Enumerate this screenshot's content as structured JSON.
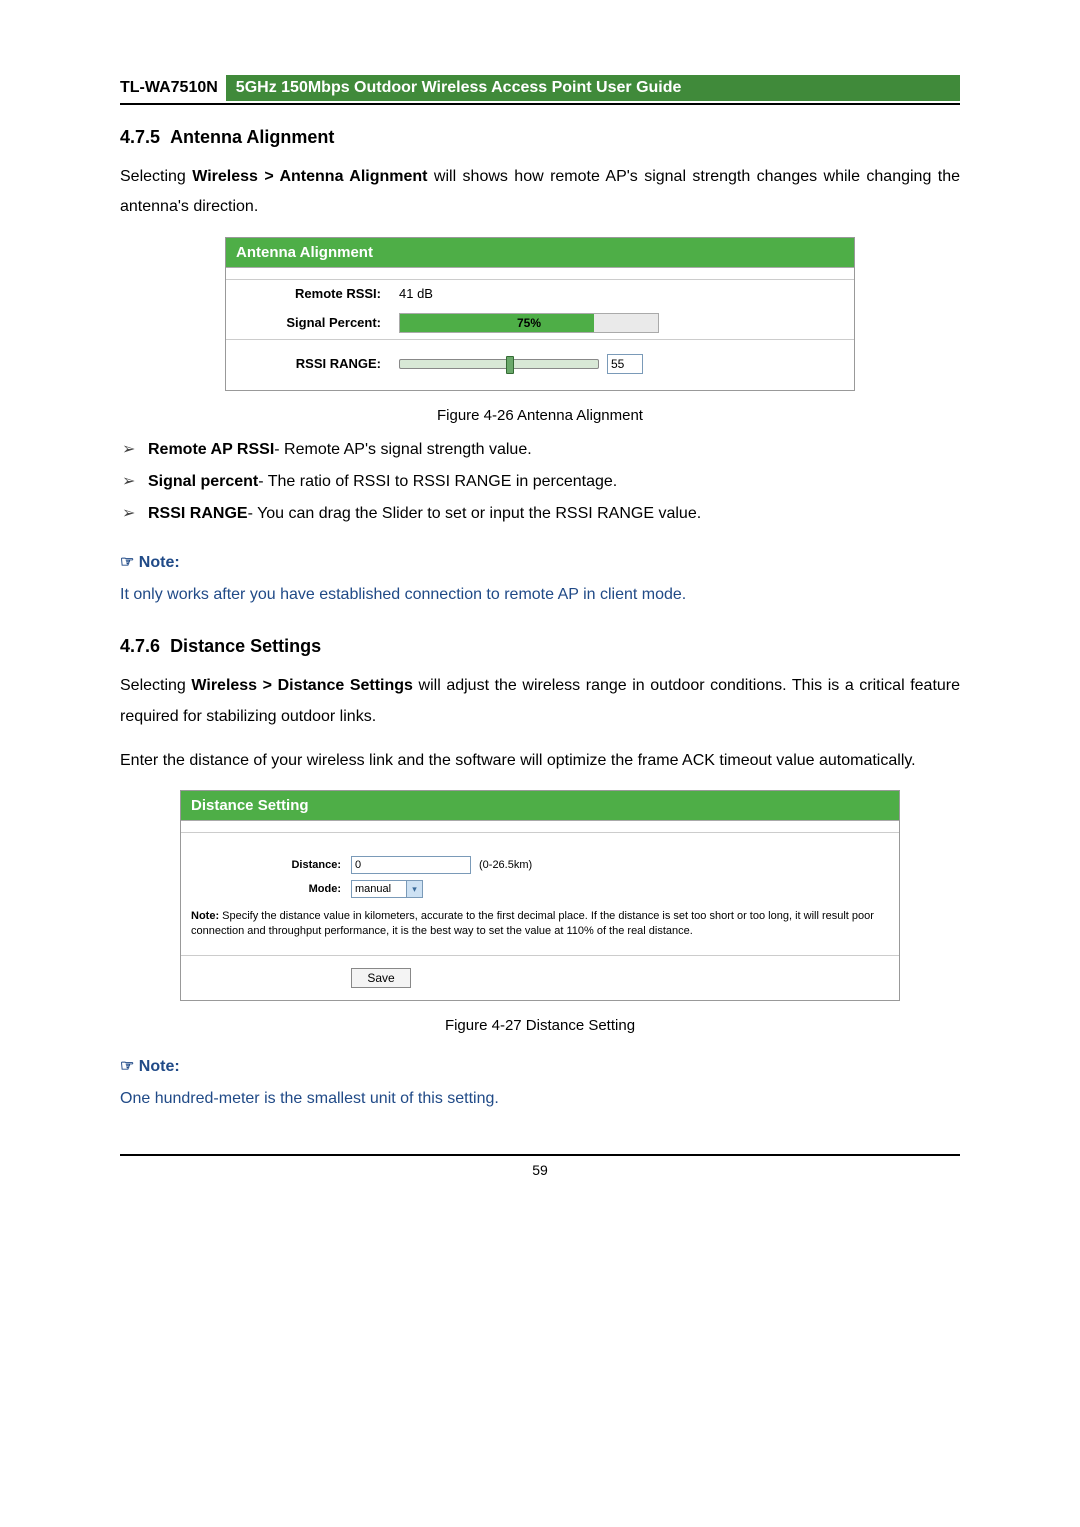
{
  "header": {
    "model": "TL-WA7510N",
    "guide_title": "5GHz 150Mbps Outdoor Wireless Access Point User Guide"
  },
  "section_475": {
    "number": "4.7.5",
    "title": "Antenna Alignment",
    "intro_prefix": "Selecting ",
    "intro_bold": "Wireless > Antenna Alignment",
    "intro_suffix": " will shows how remote AP's signal strength changes while changing the antenna's direction."
  },
  "antenna_panel": {
    "title": "Antenna Alignment",
    "remote_rssi_label": "Remote RSSI:",
    "remote_rssi_value": "41 dB",
    "signal_percent_label": "Signal Percent:",
    "signal_percent_value": 75,
    "signal_percent_text": "75%",
    "rssi_range_label": "RSSI RANGE:",
    "rssi_range_value": "55",
    "colors": {
      "header_bg": "#4eae47",
      "fill": "#4eae47",
      "track_bg": "#d8e8d6"
    }
  },
  "figure_426": "Figure 4-26 Antenna Alignment",
  "bullets_475": [
    {
      "bold": "Remote AP RSSI",
      "rest": "- Remote AP's signal strength value."
    },
    {
      "bold": "Signal percent",
      "rest": "- The ratio of RSSI to RSSI RANGE in percentage."
    },
    {
      "bold": "RSSI RANGE",
      "rest": "- You can drag the Slider to set or input the RSSI RANGE value."
    }
  ],
  "note1": {
    "label": "Note:",
    "text": "It only works after you have established connection to remote AP in client mode."
  },
  "section_476": {
    "number": "4.7.6",
    "title": "Distance Settings",
    "para1_prefix": "Selecting ",
    "para1_bold": "Wireless > Distance Settings",
    "para1_suffix": " will adjust the wireless range in outdoor conditions. This is a critical feature required for stabilizing outdoor links.",
    "para2": "Enter the distance of your wireless link and the software will optimize the frame ACK timeout value automatically."
  },
  "distance_panel": {
    "title": "Distance Setting",
    "distance_label": "Distance:",
    "distance_value": "0",
    "distance_hint": "(0-26.5km)",
    "mode_label": "Mode:",
    "mode_value": "manual",
    "note_bold": "Note:",
    "note_text": " Specify the distance value in kilometers, accurate to the first decimal place. If the distance is set too short or too long, it will result poor connection and throughput performance, it is the best way to set the value at 110% of the real distance.",
    "save_label": "Save"
  },
  "figure_427": "Figure 4-27 Distance Setting",
  "note2": {
    "label": "Note:",
    "text": "One hundred-meter is the smallest unit of this setting."
  },
  "page_number": "59"
}
